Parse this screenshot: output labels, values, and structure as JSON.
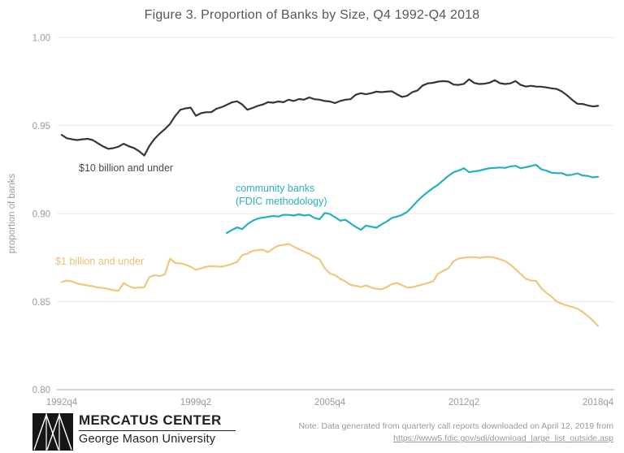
{
  "title": "Figure 3. Proportion of Banks by Size, Q4 1992-Q4 2018",
  "y_axis": {
    "label": "proportion of banks",
    "ticks": [
      "1.00",
      "0.95",
      "0.90",
      "0.85",
      "0.80"
    ]
  },
  "x_axis": {
    "ticks": [
      "1992q4",
      "1999q2",
      "2005q4",
      "2012q2",
      "2018q4"
    ]
  },
  "series_labels": {
    "large": "$10 billion and under",
    "community_line1": "community banks",
    "community_line2": "(FDIC methodology)",
    "small": "$1 billion and under"
  },
  "colors": {
    "large_line": "#33363c",
    "community_line": "#22b1bd",
    "small_line": "#f2c67c",
    "grid": "#ebebeb",
    "baseline": "#a8a8a8",
    "tick_text": "#9b9b9b"
  },
  "chart_data": {
    "type": "line",
    "x_start": "1992q4",
    "x_end": "2018q4",
    "x_step": "quarter",
    "x_tick_labels": [
      "1992q4",
      "1999q2",
      "2005q4",
      "2012q2",
      "2018q4"
    ],
    "ylim": [
      0.8,
      1.0
    ],
    "y_tick_values": [
      1.0,
      0.95,
      0.9,
      0.85,
      0.8
    ],
    "ylabel": "proportion of banks",
    "grid": "horizontal-only",
    "legend": "inline-labels",
    "series": [
      {
        "id": "ten-billion-and-under",
        "name": "$10 billion and under",
        "color": "#33363c",
        "start_index": 0,
        "values": [
          0.9447,
          0.9428,
          0.9422,
          0.9418,
          0.9422,
          0.9425,
          0.9418,
          0.94,
          0.9382,
          0.9368,
          0.9372,
          0.938,
          0.9397,
          0.9383,
          0.9373,
          0.9355,
          0.933,
          0.9385,
          0.9425,
          0.9455,
          0.948,
          0.951,
          0.9555,
          0.959,
          0.9598,
          0.9602,
          0.9556,
          0.957,
          0.9576,
          0.9576,
          0.9596,
          0.9605,
          0.9618,
          0.9632,
          0.9638,
          0.962,
          0.959,
          0.96,
          0.9612,
          0.962,
          0.9633,
          0.963,
          0.9637,
          0.9633,
          0.9647,
          0.964,
          0.9651,
          0.9647,
          0.966,
          0.965,
          0.9647,
          0.964,
          0.9637,
          0.9628,
          0.964,
          0.9647,
          0.965,
          0.9675,
          0.9684,
          0.9678,
          0.9684,
          0.9693,
          0.969,
          0.9693,
          0.9695,
          0.9678,
          0.9663,
          0.967,
          0.969,
          0.97,
          0.9728,
          0.974,
          0.9743,
          0.975,
          0.9753,
          0.975,
          0.9733,
          0.9731,
          0.9737,
          0.9763,
          0.9742,
          0.9736,
          0.9738,
          0.9744,
          0.9758,
          0.9741,
          0.9736,
          0.974,
          0.9753,
          0.9731,
          0.9722,
          0.9726,
          0.9722,
          0.9721,
          0.9717,
          0.9712,
          0.9708,
          0.9694,
          0.9672,
          0.9646,
          0.9624,
          0.9623,
          0.9615,
          0.9609,
          0.9612
        ]
      },
      {
        "id": "community-banks",
        "name": "community banks (FDIC methodology)",
        "color": "#22b1bd",
        "start_index": 32,
        "start_quarter": "2000q4",
        "values": [
          0.889,
          0.8907,
          0.8922,
          0.8912,
          0.894,
          0.8959,
          0.8972,
          0.8977,
          0.8982,
          0.8987,
          0.8983,
          0.8993,
          0.8993,
          0.8989,
          0.8996,
          0.8989,
          0.8993,
          0.8976,
          0.8968,
          0.9004,
          0.8998,
          0.898,
          0.896,
          0.8965,
          0.8945,
          0.8925,
          0.8908,
          0.8932,
          0.8926,
          0.892,
          0.8938,
          0.8955,
          0.8975,
          0.8983,
          0.8993,
          0.901,
          0.904,
          0.9072,
          0.91,
          0.9124,
          0.9145,
          0.9165,
          0.919,
          0.9215,
          0.9235,
          0.9245,
          0.9258,
          0.9235,
          0.924,
          0.9244,
          0.9252,
          0.9258,
          0.926,
          0.9262,
          0.926,
          0.9268,
          0.9272,
          0.9258,
          0.9264,
          0.927,
          0.9277,
          0.9252,
          0.9244,
          0.9232,
          0.923,
          0.923,
          0.9218,
          0.9221,
          0.9229,
          0.9217,
          0.9214,
          0.9206,
          0.9209
        ]
      },
      {
        "id": "one-billion-and-under",
        "name": "$1 billion and under",
        "color": "#f2c67c",
        "start_index": 0,
        "values": [
          0.8612,
          0.862,
          0.8615,
          0.8603,
          0.8597,
          0.8592,
          0.8588,
          0.858,
          0.8578,
          0.8572,
          0.8565,
          0.8562,
          0.8606,
          0.8588,
          0.8578,
          0.858,
          0.8582,
          0.864,
          0.865,
          0.8645,
          0.8655,
          0.8745,
          0.872,
          0.8718,
          0.871,
          0.8698,
          0.868,
          0.869,
          0.8698,
          0.8702,
          0.87,
          0.8698,
          0.8705,
          0.8715,
          0.8725,
          0.8765,
          0.8772,
          0.8788,
          0.8793,
          0.8795,
          0.8781,
          0.8802,
          0.8818,
          0.8822,
          0.8828,
          0.8813,
          0.8798,
          0.8785,
          0.8772,
          0.8755,
          0.874,
          0.869,
          0.866,
          0.865,
          0.863,
          0.8615,
          0.8595,
          0.859,
          0.8583,
          0.8592,
          0.858,
          0.8573,
          0.857,
          0.8582,
          0.86,
          0.8606,
          0.8594,
          0.858,
          0.8582,
          0.859,
          0.8598,
          0.8606,
          0.8615,
          0.866,
          0.8675,
          0.869,
          0.873,
          0.8745,
          0.875,
          0.8752,
          0.8753,
          0.8749,
          0.8753,
          0.8755,
          0.875,
          0.874,
          0.873,
          0.871,
          0.8685,
          0.8657,
          0.863,
          0.862,
          0.8618,
          0.8576,
          0.855,
          0.8528,
          0.85,
          0.8488,
          0.8478,
          0.847,
          0.846,
          0.8442,
          0.842,
          0.8392,
          0.8362
        ]
      }
    ]
  },
  "footer": {
    "brand_top": "MERCATUS CENTER",
    "brand_bottom": "George Mason University",
    "note_line1": "Note: Data generated from quarterly call reports downloaded on April 12, 2019 from",
    "note_link": "https://www5.fdic.gov/sdi/download_large_list_outside.asp"
  }
}
